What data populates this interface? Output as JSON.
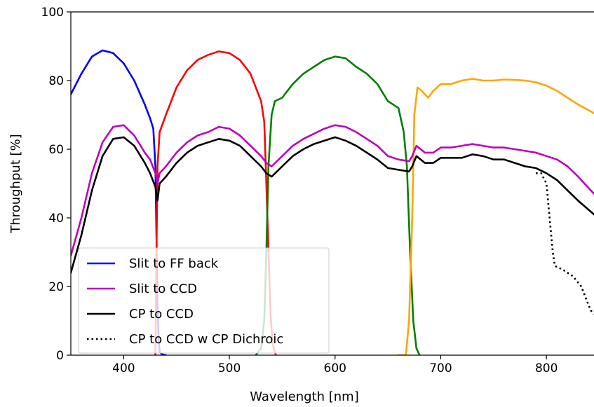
{
  "chart_data": {
    "type": "line",
    "xlabel": "Wavelength [nm]",
    "ylabel": "Throughput [%]",
    "xlim": [
      350,
      845
    ],
    "ylim": [
      0,
      100
    ],
    "xticks": [
      400,
      500,
      600,
      700,
      800
    ],
    "yticks": [
      0,
      20,
      40,
      60,
      80,
      100
    ],
    "grid": false,
    "legend_position": "lower-left",
    "series": [
      {
        "name": "",
        "color": "#0000ff",
        "style": "solid",
        "in_legend": false,
        "points": [
          [
            350,
            76
          ],
          [
            360,
            82
          ],
          [
            370,
            87
          ],
          [
            380,
            88.8
          ],
          [
            390,
            88
          ],
          [
            400,
            85
          ],
          [
            410,
            80
          ],
          [
            420,
            73
          ],
          [
            425,
            69
          ],
          [
            428,
            66
          ],
          [
            430,
            55
          ],
          [
            431,
            35
          ],
          [
            432,
            15
          ],
          [
            433,
            5
          ],
          [
            434,
            1
          ],
          [
            436,
            0.3
          ],
          [
            440,
            0
          ]
        ]
      },
      {
        "name": "",
        "color": "#ff0000",
        "style": "solid",
        "in_legend": false,
        "points": [
          [
            430,
            0
          ],
          [
            431,
            30
          ],
          [
            432,
            55
          ],
          [
            434,
            65
          ],
          [
            440,
            70
          ],
          [
            450,
            78
          ],
          [
            460,
            83
          ],
          [
            470,
            86
          ],
          [
            480,
            87.5
          ],
          [
            490,
            88.5
          ],
          [
            500,
            88
          ],
          [
            510,
            86
          ],
          [
            520,
            82
          ],
          [
            530,
            74
          ],
          [
            533,
            68
          ],
          [
            535,
            50
          ],
          [
            537,
            30
          ],
          [
            539,
            12
          ],
          [
            541,
            3
          ],
          [
            544,
            0
          ]
        ]
      },
      {
        "name": "",
        "color": "#008000",
        "style": "solid",
        "in_legend": false,
        "points": [
          [
            525,
            0
          ],
          [
            530,
            2
          ],
          [
            533,
            10
          ],
          [
            535,
            30
          ],
          [
            537,
            55
          ],
          [
            540,
            70
          ],
          [
            543,
            74
          ],
          [
            550,
            75
          ],
          [
            560,
            79
          ],
          [
            570,
            82
          ],
          [
            580,
            84
          ],
          [
            590,
            86
          ],
          [
            600,
            87
          ],
          [
            610,
            86.5
          ],
          [
            620,
            84
          ],
          [
            630,
            82
          ],
          [
            640,
            79
          ],
          [
            650,
            74
          ],
          [
            655,
            73
          ],
          [
            660,
            72
          ],
          [
            665,
            65
          ],
          [
            668,
            55
          ],
          [
            671,
            30
          ],
          [
            674,
            10
          ],
          [
            677,
            2
          ],
          [
            680,
            0
          ]
        ]
      },
      {
        "name": "",
        "color": "#ffa500",
        "style": "solid",
        "in_legend": false,
        "points": [
          [
            660,
            0
          ],
          [
            667,
            0
          ],
          [
            670,
            10
          ],
          [
            673,
            40
          ],
          [
            675,
            70
          ],
          [
            678,
            78
          ],
          [
            682,
            77
          ],
          [
            688,
            75
          ],
          [
            693,
            77
          ],
          [
            700,
            79
          ],
          [
            710,
            79
          ],
          [
            720,
            80
          ],
          [
            730,
            80.5
          ],
          [
            740,
            80
          ],
          [
            750,
            80
          ],
          [
            760,
            80.3
          ],
          [
            770,
            80.2
          ],
          [
            780,
            80
          ],
          [
            790,
            79.5
          ],
          [
            800,
            78.5
          ],
          [
            810,
            77
          ],
          [
            820,
            75
          ],
          [
            830,
            73
          ],
          [
            845,
            70.5
          ]
        ]
      },
      {
        "name": "Slit to FF back",
        "color": "#0000ff",
        "style": "solid",
        "in_legend": true,
        "points": []
      },
      {
        "name": "Slit to CCD",
        "color": "#bf00bf",
        "style": "solid",
        "in_legend": true,
        "points": [
          [
            350,
            29
          ],
          [
            360,
            40
          ],
          [
            370,
            53
          ],
          [
            380,
            62
          ],
          [
            390,
            66.5
          ],
          [
            400,
            67
          ],
          [
            410,
            64
          ],
          [
            420,
            59
          ],
          [
            425,
            57
          ],
          [
            430,
            53
          ],
          [
            432,
            50
          ],
          [
            434,
            53
          ],
          [
            440,
            55
          ],
          [
            450,
            59
          ],
          [
            460,
            62
          ],
          [
            470,
            64
          ],
          [
            480,
            65
          ],
          [
            490,
            66.5
          ],
          [
            500,
            66
          ],
          [
            510,
            64
          ],
          [
            520,
            61
          ],
          [
            530,
            58
          ],
          [
            535,
            56
          ],
          [
            540,
            55
          ],
          [
            550,
            58
          ],
          [
            560,
            61
          ],
          [
            570,
            63
          ],
          [
            580,
            64.5
          ],
          [
            590,
            66
          ],
          [
            600,
            67
          ],
          [
            610,
            66.5
          ],
          [
            620,
            65
          ],
          [
            630,
            63
          ],
          [
            640,
            61
          ],
          [
            650,
            58
          ],
          [
            660,
            57
          ],
          [
            670,
            56.5
          ],
          [
            673,
            58
          ],
          [
            677,
            61
          ],
          [
            685,
            59
          ],
          [
            693,
            59
          ],
          [
            700,
            60.5
          ],
          [
            710,
            60.5
          ],
          [
            720,
            61
          ],
          [
            730,
            61.5
          ],
          [
            740,
            61
          ],
          [
            750,
            60.5
          ],
          [
            760,
            60.5
          ],
          [
            770,
            60
          ],
          [
            780,
            59.5
          ],
          [
            790,
            59
          ],
          [
            800,
            58
          ],
          [
            810,
            57
          ],
          [
            820,
            55
          ],
          [
            830,
            52
          ],
          [
            845,
            47
          ]
        ]
      },
      {
        "name": "CP to CCD",
        "color": "#000000",
        "style": "solid",
        "in_legend": true,
        "points": [
          [
            350,
            24
          ],
          [
            360,
            35
          ],
          [
            370,
            48
          ],
          [
            380,
            58
          ],
          [
            390,
            63
          ],
          [
            400,
            63.5
          ],
          [
            410,
            61
          ],
          [
            420,
            56
          ],
          [
            425,
            53
          ],
          [
            430,
            49
          ],
          [
            432,
            45
          ],
          [
            434,
            50
          ],
          [
            440,
            52
          ],
          [
            450,
            56
          ],
          [
            460,
            59
          ],
          [
            470,
            61
          ],
          [
            480,
            62
          ],
          [
            490,
            63
          ],
          [
            500,
            62.5
          ],
          [
            510,
            61
          ],
          [
            520,
            58
          ],
          [
            530,
            55
          ],
          [
            535,
            53
          ],
          [
            540,
            52
          ],
          [
            550,
            55
          ],
          [
            560,
            58
          ],
          [
            570,
            60
          ],
          [
            580,
            61.5
          ],
          [
            590,
            62.5
          ],
          [
            600,
            63.5
          ],
          [
            610,
            62.5
          ],
          [
            620,
            61
          ],
          [
            630,
            59
          ],
          [
            640,
            57
          ],
          [
            650,
            54.5
          ],
          [
            660,
            54
          ],
          [
            670,
            53.5
          ],
          [
            673,
            55
          ],
          [
            677,
            58
          ],
          [
            685,
            56
          ],
          [
            693,
            56
          ],
          [
            700,
            57.5
          ],
          [
            710,
            57.5
          ],
          [
            720,
            57.5
          ],
          [
            730,
            58.5
          ],
          [
            740,
            58
          ],
          [
            750,
            57
          ],
          [
            760,
            57
          ],
          [
            770,
            56
          ],
          [
            780,
            55
          ],
          [
            790,
            54.5
          ],
          [
            800,
            53
          ],
          [
            810,
            51
          ],
          [
            820,
            48
          ],
          [
            830,
            45
          ],
          [
            845,
            41
          ]
        ]
      },
      {
        "name": "CP to CCD w CP Dichroic",
        "color": "#000000",
        "style": "dotted",
        "in_legend": true,
        "points": [
          [
            790,
            53
          ],
          [
            795,
            53
          ],
          [
            800,
            50
          ],
          [
            803,
            40
          ],
          [
            806,
            30
          ],
          [
            808,
            26
          ],
          [
            815,
            25
          ],
          [
            825,
            23
          ],
          [
            833,
            20
          ],
          [
            838,
            16
          ],
          [
            842,
            13
          ],
          [
            845,
            12
          ]
        ]
      }
    ]
  }
}
